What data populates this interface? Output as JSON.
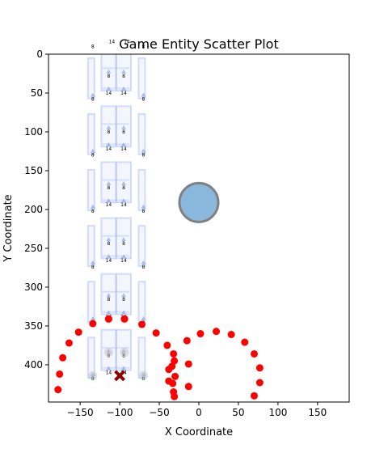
{
  "chart_data": {
    "type": "scatter",
    "title": "Game Entity Scatter Plot",
    "xlabel": "X Coordinate",
    "ylabel": "Y Coordinate",
    "xlim": [
      -190,
      190
    ],
    "ylim": [
      448,
      0
    ],
    "y_inverted": true,
    "grid": false,
    "xticks": [
      -150,
      -100,
      -50,
      0,
      50,
      100,
      150
    ],
    "yticks": [
      0,
      50,
      100,
      150,
      200,
      250,
      300,
      350,
      400
    ],
    "colors": {
      "red": "#ff0000",
      "blue_circle_fill": "#8ab8dc",
      "blue_circle_edge": "#808080",
      "tile_edge": "#9fb5f5",
      "arrow": "#7799dd",
      "cross": "#8b0000"
    },
    "large_circle": {
      "x": 0,
      "y": 191,
      "r": 24
    },
    "cross_marker": {
      "x": -100,
      "y": 414
    },
    "red_points": [
      [
        -178,
        432
      ],
      [
        -176,
        412
      ],
      [
        -172,
        391
      ],
      [
        -164,
        372
      ],
      [
        -152,
        358
      ],
      [
        -134,
        347
      ],
      [
        -114,
        341
      ],
      [
        -94,
        341
      ],
      [
        -72,
        348
      ],
      [
        -54,
        359
      ],
      [
        -40,
        375
      ],
      [
        -38,
        406
      ],
      [
        -34,
        402
      ],
      [
        -32,
        386
      ],
      [
        -31,
        395
      ],
      [
        -30,
        415
      ],
      [
        -38,
        421
      ],
      [
        -33,
        424
      ],
      [
        -32,
        435
      ],
      [
        -31,
        441
      ],
      [
        -15,
        369
      ],
      [
        -13,
        399
      ],
      [
        -13,
        428
      ],
      [
        2,
        360
      ],
      [
        22,
        357
      ],
      [
        41,
        361
      ],
      [
        58,
        371
      ],
      [
        70,
        386
      ],
      [
        77,
        404
      ],
      [
        77,
        423
      ],
      [
        70,
        440
      ]
    ],
    "columns": [
      {
        "x": -134,
        "number": "8"
      },
      {
        "x": -114,
        "number": "14"
      },
      {
        "x": -95,
        "number": "14"
      },
      {
        "x": -70,
        "number": "8"
      }
    ],
    "column_label_rows_outer": [
      -10,
      60,
      132,
      204,
      276,
      348,
      420
    ],
    "column_label_rows_inner": [
      -16,
      52,
      124,
      196,
      268,
      340,
      412
    ],
    "inner_numbers": [
      {
        "x": -114,
        "y": 30,
        "value": "8"
      },
      {
        "x": -95,
        "y": 30,
        "value": "8"
      },
      {
        "x": -114,
        "y": 102,
        "value": "8"
      },
      {
        "x": -95,
        "y": 102,
        "value": "8"
      },
      {
        "x": -114,
        "y": 174,
        "value": "8"
      },
      {
        "x": -95,
        "y": 174,
        "value": "8"
      },
      {
        "x": -114,
        "y": 246,
        "value": "8"
      },
      {
        "x": -95,
        "y": 246,
        "value": "8"
      },
      {
        "x": -114,
        "y": 318,
        "value": "8"
      },
      {
        "x": -95,
        "y": 318,
        "value": "8"
      },
      {
        "x": -114,
        "y": 390,
        "value": "8"
      },
      {
        "x": -95,
        "y": 390,
        "value": "8"
      }
    ],
    "faded_circles": [
      [
        -114,
        341
      ],
      [
        -94,
        341
      ],
      [
        -114,
        384
      ],
      [
        -94,
        384
      ],
      [
        -134,
        414
      ],
      [
        -70,
        414
      ]
    ]
  }
}
